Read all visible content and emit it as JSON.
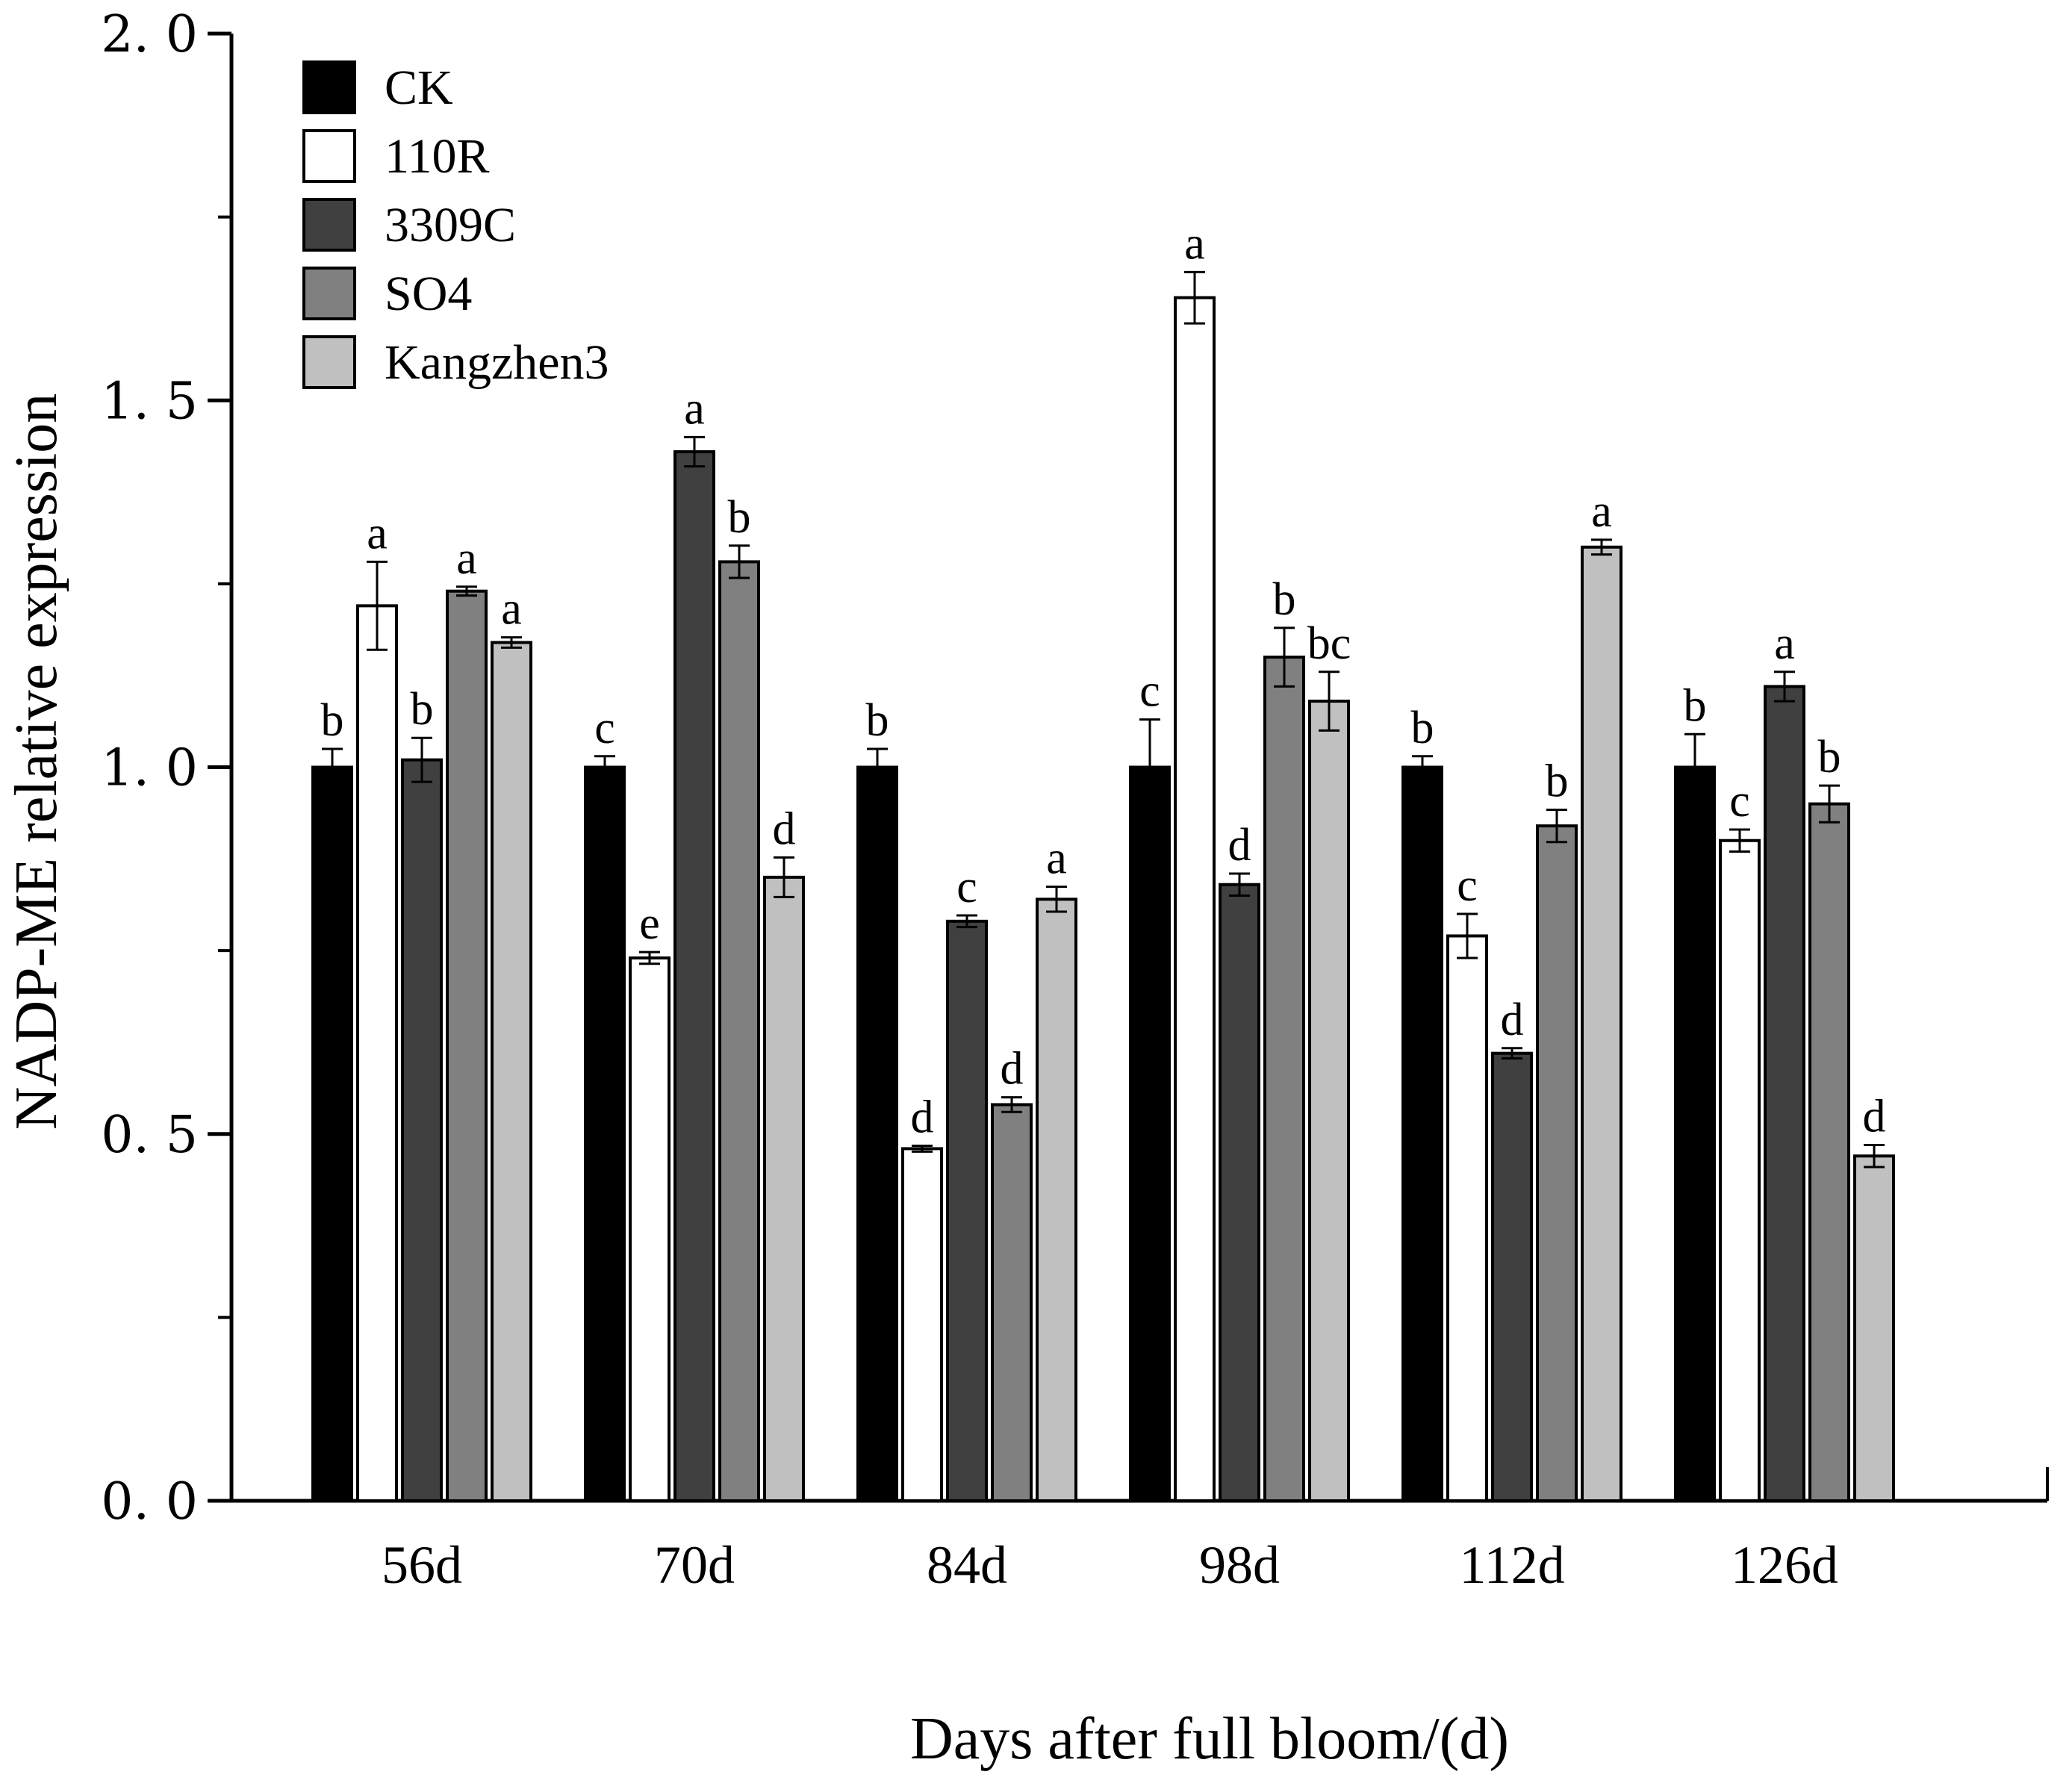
{
  "chart_data": {
    "type": "bar",
    "title": "",
    "xlabel": "Days after full bloom/(d)",
    "ylabel": "NADP-ME relative expression",
    "ylim": [
      0,
      2.0
    ],
    "y_ticks": [
      "0. 0",
      "0. 5",
      "1. 0",
      "1. 5",
      "2. 0"
    ],
    "y_tick_values": [
      0,
      0.5,
      1.0,
      1.5,
      2.0
    ],
    "categories": [
      "56d",
      "70d",
      "84d",
      "98d",
      "112d",
      "126d"
    ],
    "legend_position": "top-left",
    "series": [
      {
        "name": "CK",
        "color": "#000000",
        "values": [
          1.0,
          1.0,
          1.0,
          1.0,
          1.0,
          1.0
        ],
        "errors": [
          0.025,
          0.015,
          0.025,
          0.065,
          0.015,
          0.045
        ],
        "letters": [
          "b",
          "c",
          "b",
          "c",
          "b",
          "b"
        ]
      },
      {
        "name": "110R",
        "color": "#ffffff",
        "values": [
          1.22,
          0.74,
          0.48,
          1.64,
          0.77,
          0.9
        ],
        "errors": [
          0.06,
          0.008,
          0.004,
          0.035,
          0.03,
          0.015
        ],
        "letters": [
          "a",
          "e",
          "d",
          "a",
          "c",
          "c"
        ]
      },
      {
        "name": "3309C",
        "color": "#404040",
        "values": [
          1.01,
          1.43,
          0.79,
          0.84,
          0.61,
          1.11
        ],
        "errors": [
          0.03,
          0.02,
          0.008,
          0.015,
          0.007,
          0.02
        ],
        "letters": [
          "b",
          "a",
          "c",
          "d",
          "d",
          "a"
        ]
      },
      {
        "name": "SO4",
        "color": "#808080",
        "values": [
          1.24,
          1.28,
          0.54,
          1.15,
          0.92,
          0.95
        ],
        "errors": [
          0.006,
          0.022,
          0.01,
          0.04,
          0.022,
          0.025
        ],
        "letters": [
          "a",
          "b",
          "d",
          "b",
          "b",
          "b"
        ]
      },
      {
        "name": "Kangzhen3",
        "color": "#c0c0c0",
        "values": [
          1.17,
          0.85,
          0.82,
          1.09,
          1.3,
          0.47
        ],
        "errors": [
          0.007,
          0.027,
          0.017,
          0.04,
          0.01,
          0.015
        ],
        "letters": [
          "a",
          "d",
          "a",
          "bc",
          "a",
          "d"
        ]
      }
    ]
  }
}
